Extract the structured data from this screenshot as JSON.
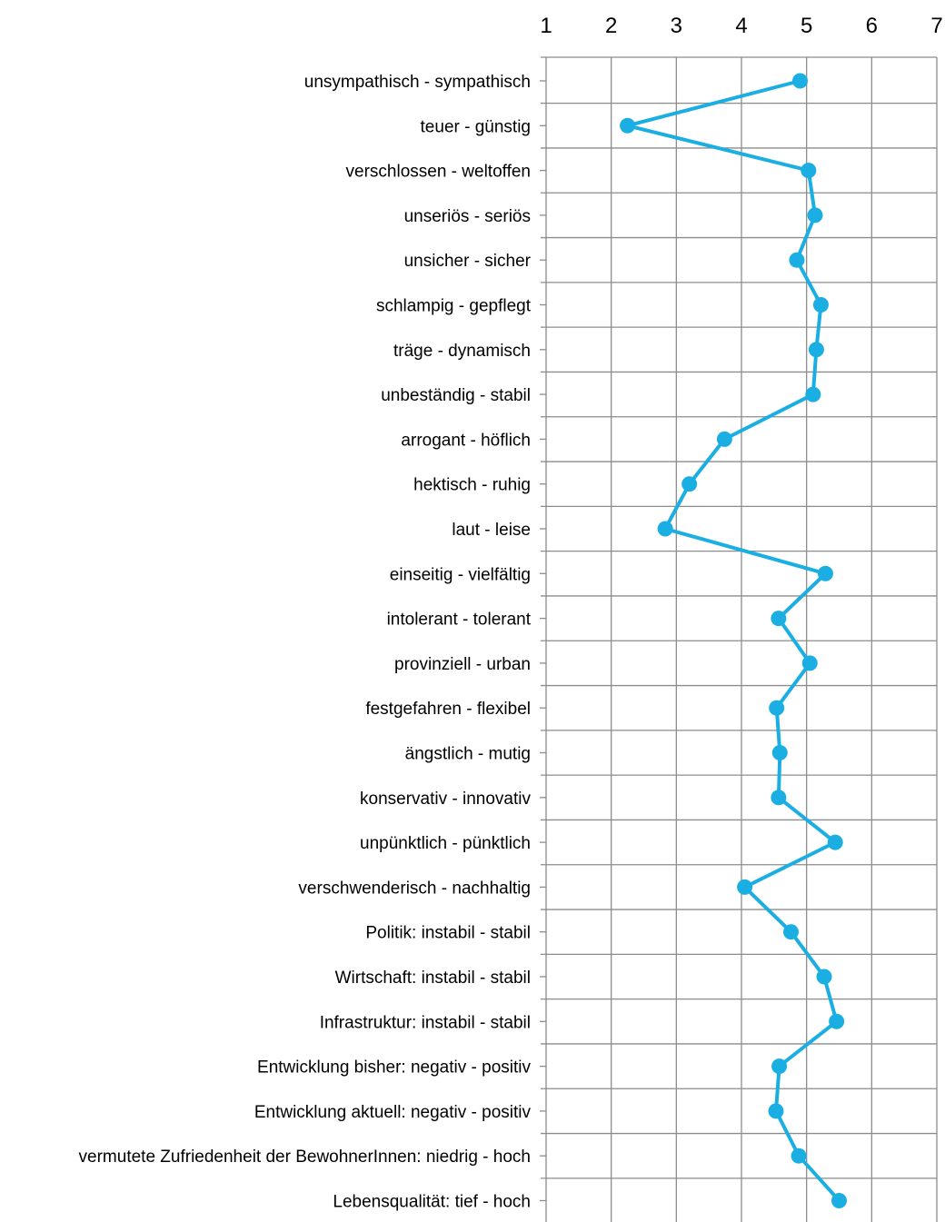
{
  "chart_data": {
    "type": "line",
    "orientation": "horizontal-profile",
    "title": "",
    "xlabel": "",
    "ylabel": "",
    "xlim": [
      1,
      7
    ],
    "x_ticks": [
      "1",
      "2",
      "3",
      "4",
      "5",
      "6",
      "7"
    ],
    "grid": true,
    "legend": "none",
    "series_color": "#1aaee2",
    "grid_color": "#8c8c8c",
    "categories": [
      "unsympathisch - sympathisch",
      "teuer - günstig",
      "verschlossen - weltoffen",
      "unseriös - seriös",
      "unsicher - sicher",
      "schlampig - gepflegt",
      "träge - dynamisch",
      "unbeständig - stabil",
      "arrogant - höflich",
      "hektisch - ruhig",
      "laut - leise",
      "einseitig - vielfältig",
      "intolerant - tolerant",
      "provinziell - urban",
      "festgefahren - flexibel",
      "ängstlich - mutig",
      "konservativ - innovativ",
      "unpünktlich - pünktlich",
      "verschwenderisch - nachhaltig",
      "Politik: instabil - stabil",
      "Wirtschaft: instabil - stabil",
      "Infrastruktur: instabil - stabil",
      "Entwicklung bisher: negativ - positiv",
      "Entwicklung aktuell: negativ - positiv",
      "vermutete Zufriedenheit der BewohnerInnen: niedrig - hoch",
      "Lebensqualität: tief - hoch"
    ],
    "values": [
      4.9,
      2.25,
      5.03,
      5.13,
      4.85,
      5.22,
      5.15,
      5.1,
      3.74,
      3.2,
      2.83,
      5.29,
      4.57,
      5.05,
      4.54,
      4.59,
      4.57,
      5.44,
      4.05,
      4.76,
      5.27,
      5.46,
      4.58,
      4.53,
      4.88,
      5.5
    ]
  }
}
